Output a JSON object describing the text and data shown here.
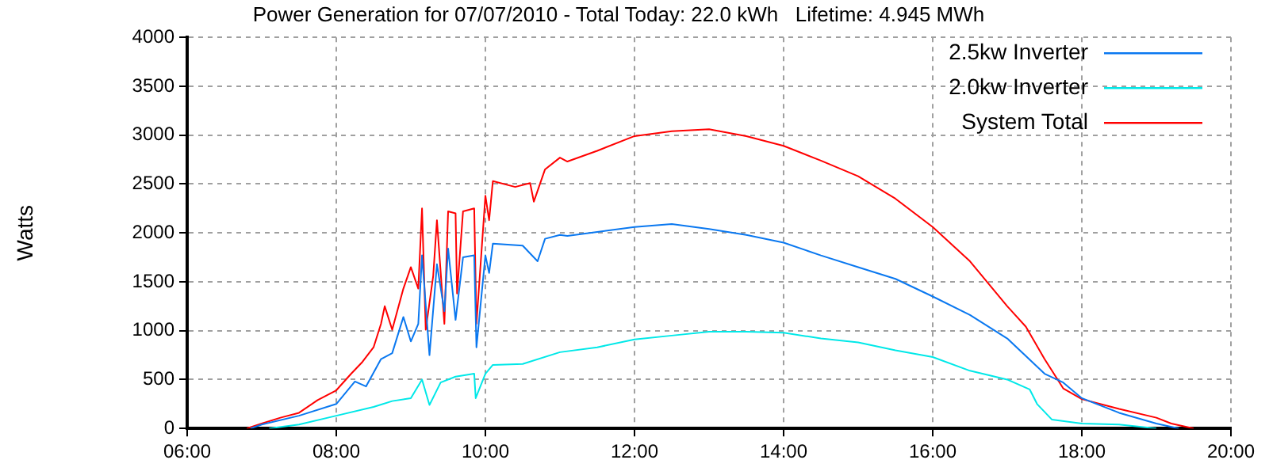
{
  "chart_data": {
    "type": "line",
    "title": "Power Generation for 07/07/2010 - Total Today: 22.0 kWh   Lifetime: 4.945 MWh",
    "ylabel": "Watts",
    "xlim": [
      6,
      20
    ],
    "xticks": [
      {
        "value": 6,
        "label": "06:00"
      },
      {
        "value": 8,
        "label": "08:00"
      },
      {
        "value": 10,
        "label": "10:00"
      },
      {
        "value": 12,
        "label": "12:00"
      },
      {
        "value": 14,
        "label": "14:00"
      },
      {
        "value": 16,
        "label": "16:00"
      },
      {
        "value": 18,
        "label": "18:00"
      },
      {
        "value": 20,
        "label": "20:00"
      }
    ],
    "ylim": [
      0,
      4000
    ],
    "yticks": [
      0,
      500,
      1000,
      1500,
      2000,
      2500,
      3000,
      3500,
      4000
    ],
    "grid": true,
    "legend": "top right",
    "marker": "none",
    "line_style": "solid",
    "series": [
      {
        "name": "2.5kw Inverter",
        "color": "#0a78f0",
        "x": [
          6.85,
          7,
          7.5,
          8,
          8.25,
          8.4,
          8.6,
          8.75,
          8.9,
          9,
          9.1,
          9.15,
          9.25,
          9.35,
          9.45,
          9.5,
          9.6,
          9.7,
          9.85,
          9.88,
          10,
          10.05,
          10.1,
          10.5,
          10.7,
          10.8,
          11,
          11.1,
          11.5,
          12,
          12.5,
          13,
          13.5,
          14,
          14.5,
          15,
          15.5,
          16,
          16.5,
          17,
          17.5,
          17.75,
          18,
          18.5,
          19,
          19.3
        ],
        "values": [
          0,
          40,
          130,
          250,
          480,
          430,
          710,
          770,
          1140,
          890,
          1070,
          1770,
          750,
          1680,
          1200,
          1840,
          1110,
          1750,
          1770,
          830,
          1770,
          1590,
          1890,
          1870,
          1710,
          1940,
          1980,
          1970,
          2010,
          2060,
          2090,
          2040,
          1980,
          1900,
          1770,
          1650,
          1530,
          1350,
          1160,
          920,
          560,
          470,
          310,
          160,
          50,
          0
        ]
      },
      {
        "name": "2.0kw Inverter",
        "color": "#00e8e8",
        "x": [
          7.1,
          7.5,
          8,
          8.5,
          8.75,
          9,
          9.15,
          9.25,
          9.4,
          9.6,
          9.85,
          9.87,
          10,
          10.1,
          10.5,
          11,
          11.5,
          12,
          12.5,
          13,
          13.5,
          14,
          14.5,
          15,
          15.5,
          16,
          16.5,
          17,
          17.3,
          17.4,
          17.6,
          18,
          18.5,
          19
        ],
        "values": [
          0,
          40,
          130,
          220,
          280,
          310,
          500,
          240,
          470,
          530,
          560,
          310,
          560,
          650,
          660,
          780,
          830,
          910,
          950,
          990,
          990,
          980,
          920,
          880,
          800,
          730,
          590,
          500,
          400,
          250,
          90,
          50,
          40,
          0
        ]
      },
      {
        "name": "System Total",
        "color": "#ff0000",
        "x": [
          6.8,
          7,
          7.25,
          7.5,
          7.75,
          8,
          8.2,
          8.35,
          8.5,
          8.6,
          8.65,
          8.75,
          8.9,
          9,
          9.1,
          9.15,
          9.2,
          9.3,
          9.35,
          9.45,
          9.5,
          9.6,
          9.62,
          9.7,
          9.85,
          9.88,
          10,
          10.05,
          10.1,
          10.4,
          10.6,
          10.65,
          10.8,
          11,
          11.1,
          11.5,
          12,
          12.5,
          13,
          13.5,
          14,
          14.5,
          15,
          15.5,
          16,
          16.5,
          17,
          17.25,
          17.5,
          17.75,
          18,
          18.5,
          19,
          19.2,
          19.5
        ],
        "values": [
          0,
          50,
          110,
          160,
          290,
          390,
          560,
          680,
          830,
          1070,
          1250,
          1010,
          1430,
          1650,
          1430,
          2250,
          1010,
          1560,
          2130,
          1070,
          2220,
          2200,
          1380,
          2220,
          2250,
          1070,
          2380,
          2130,
          2530,
          2470,
          2510,
          2320,
          2650,
          2770,
          2730,
          2840,
          2990,
          3040,
          3060,
          2990,
          2890,
          2740,
          2580,
          2350,
          2060,
          1710,
          1250,
          1040,
          710,
          410,
          300,
          200,
          110,
          50,
          0
        ]
      }
    ]
  }
}
